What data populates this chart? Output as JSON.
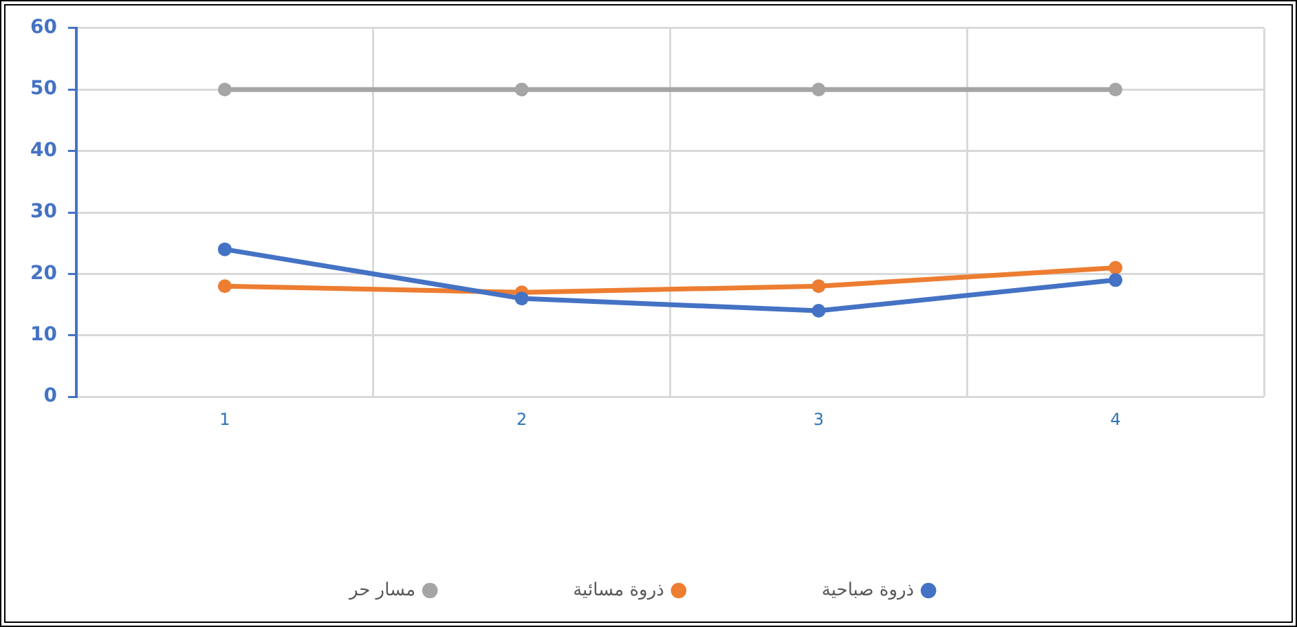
{
  "chart_data": {
    "type": "line",
    "categories": [
      "1",
      "2",
      "3",
      "4"
    ],
    "series": [
      {
        "name": "ذروة صباحية",
        "color": "#4472c4",
        "values": [
          24,
          16,
          14,
          19
        ]
      },
      {
        "name": "ذروة مسائية",
        "color": "#ed7d31",
        "values": [
          18,
          17,
          18,
          21
        ]
      },
      {
        "name": "مسار حر",
        "color": "#a5a5a5",
        "values": [
          50,
          50,
          50,
          50
        ]
      }
    ],
    "ylim": [
      0,
      60
    ],
    "yticks": [
      0,
      10,
      20,
      30,
      40,
      50,
      60
    ],
    "grid": true,
    "legend": "bottom",
    "marker": "circle",
    "line_style": "solid"
  }
}
